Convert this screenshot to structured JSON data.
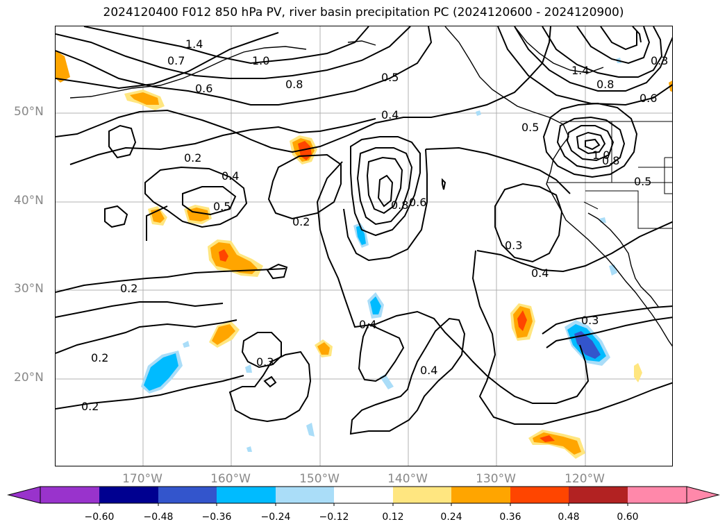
{
  "title": "2024120400 F012 850 hPa PV, river basin precipitation PC (2024120600 - 2024120900)",
  "map": {
    "lat_labels": [
      "50°N",
      "40°N",
      "30°N",
      "20°N"
    ],
    "lon_labels": [
      "170°W",
      "160°W",
      "150°W",
      "140°W",
      "130°W",
      "120°W"
    ],
    "contour_labels": [
      "1.4",
      "0.7",
      "1.0",
      "0.6",
      "0.8",
      "0.5",
      "0.4",
      "0.2",
      "0.4",
      "0.5",
      "0.2",
      "0.8",
      "0.6",
      "0.3",
      "0.4",
      "0.2",
      "0.2",
      "0.4",
      "0.3",
      "0.4",
      "0.2",
      "0.3",
      "0.5",
      "1.0",
      "0.8",
      "0.5",
      "1.4",
      "0.8",
      "0.6",
      "0.3"
    ]
  },
  "colorbar": {
    "ticks": [
      "−0.60",
      "−0.48",
      "−0.36",
      "−0.24",
      "−0.12",
      "0.12",
      "0.24",
      "0.36",
      "0.48",
      "0.60"
    ],
    "colors": [
      "#9933cc",
      "#000090",
      "#3355cc",
      "#00bbff",
      "#aaddf8",
      "#ffffff",
      "#ffe680",
      "#ffa500",
      "#ff4500",
      "#b22222",
      "#ff88aa",
      "#ff88aa"
    ]
  }
}
